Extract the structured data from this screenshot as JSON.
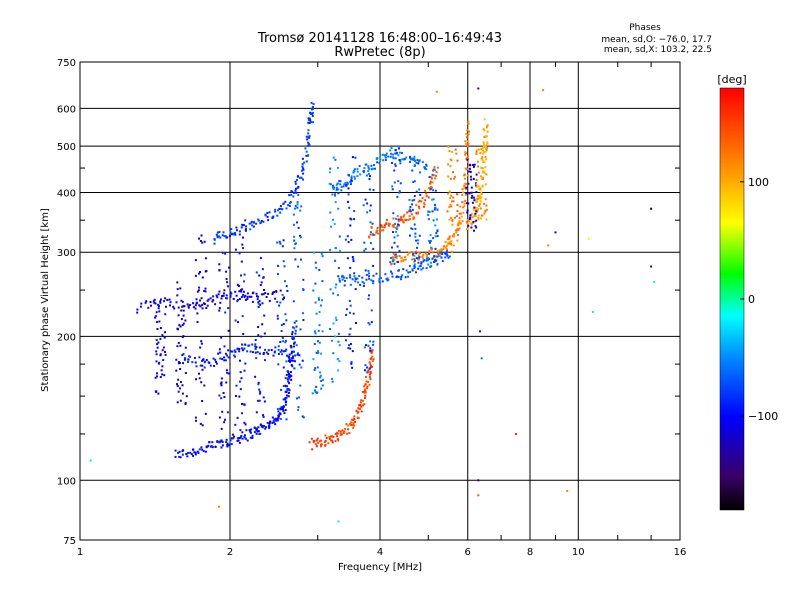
{
  "chart_data": {
    "type": "scatter",
    "title": "Tromsø 20141128 16:48:00–16:49:43",
    "subtitle": "RwPretec (8p)",
    "xlabel": "Frequency [MHz]",
    "ylabel": "Stationary phase Virtual Height [km]",
    "x_scale": "log",
    "y_scale": "log",
    "xlim": [
      1,
      16
    ],
    "ylim": [
      75,
      750
    ],
    "x_ticks": [
      1,
      2,
      4,
      6,
      8,
      10,
      16
    ],
    "x_tick_labels": [
      "1",
      "2",
      "4",
      "6",
      "8",
      "10",
      "16"
    ],
    "y_ticks": [
      75,
      100,
      200,
      300,
      400,
      500,
      600,
      750
    ],
    "y_tick_labels": [
      "75",
      "100",
      "200",
      "300",
      "400",
      "500",
      "600",
      "750"
    ],
    "grid": true,
    "phase_stats": {
      "title": "Phases",
      "line1": "mean, sd,O: −76.0, 17.7",
      "line2": "mean, sd,X: 103.2, 22.5"
    },
    "colorbar": {
      "label": "[deg]",
      "range": [
        -180,
        180
      ],
      "ticks": [
        100,
        0,
        -100
      ],
      "tick_labels": [
        "100",
        "0",
        "−100"
      ]
    },
    "traces": [
      {
        "kind": "o_low",
        "phase": -100,
        "pts": [
          [
            1.55,
            113
          ],
          [
            1.7,
            115
          ],
          [
            1.85,
            118
          ],
          [
            2.0,
            121
          ],
          [
            2.15,
            124
          ],
          [
            2.3,
            128
          ],
          [
            2.45,
            133
          ],
          [
            2.55,
            140
          ],
          [
            2.6,
            150
          ],
          [
            2.63,
            165
          ],
          [
            2.66,
            185
          ],
          [
            2.7,
            210
          ]
        ]
      },
      {
        "kind": "x_low",
        "phase": 150,
        "pts": [
          [
            2.9,
            119
          ],
          [
            3.1,
            121
          ],
          [
            3.3,
            124
          ],
          [
            3.5,
            130
          ],
          [
            3.65,
            140
          ],
          [
            3.75,
            155
          ],
          [
            3.82,
            170
          ],
          [
            3.86,
            190
          ]
        ]
      },
      {
        "kind": "o_f",
        "phase": -80,
        "pts": [
          [
            1.85,
            320
          ],
          [
            2.0,
            328
          ],
          [
            2.2,
            340
          ],
          [
            2.4,
            355
          ],
          [
            2.6,
            380
          ],
          [
            2.75,
            420
          ],
          [
            2.85,
            480
          ],
          [
            2.9,
            560
          ],
          [
            2.93,
            610
          ]
        ]
      },
      {
        "kind": "o_f2",
        "phase": -70,
        "pts": [
          [
            3.3,
            262
          ],
          [
            3.6,
            262
          ],
          [
            4.0,
            265
          ],
          [
            4.4,
            270
          ],
          [
            4.8,
            280
          ],
          [
            5.2,
            290
          ],
          [
            5.5,
            300
          ]
        ]
      },
      {
        "kind": "x_f",
        "phase": 120,
        "pts": [
          [
            4.2,
            290
          ],
          [
            4.5,
            292
          ],
          [
            4.9,
            296
          ],
          [
            5.3,
            303
          ],
          [
            5.6,
            320
          ],
          [
            5.8,
            350
          ],
          [
            5.92,
            400
          ],
          [
            5.98,
            470
          ],
          [
            6.0,
            560
          ]
        ]
      },
      {
        "kind": "x_f2",
        "phase": 100,
        "pts": [
          [
            6.0,
            340
          ],
          [
            6.2,
            360
          ],
          [
            6.35,
            400
          ],
          [
            6.45,
            450
          ],
          [
            6.5,
            500
          ],
          [
            6.52,
            560
          ]
        ]
      },
      {
        "kind": "spread",
        "phase": -110,
        "pts": [
          [
            1.3,
            230
          ],
          [
            1.5,
            235
          ],
          [
            1.7,
            230
          ],
          [
            1.9,
            240
          ],
          [
            2.1,
            245
          ],
          [
            2.3,
            240
          ],
          [
            2.6,
            245
          ]
        ]
      },
      {
        "kind": "spread2",
        "phase": -90,
        "pts": [
          [
            1.6,
            180
          ],
          [
            1.8,
            175
          ],
          [
            2.0,
            185
          ],
          [
            2.2,
            190
          ],
          [
            2.5,
            185
          ],
          [
            2.8,
            180
          ]
        ]
      },
      {
        "kind": "upper",
        "phase": -60,
        "pts": [
          [
            3.2,
            400
          ],
          [
            3.4,
            420
          ],
          [
            3.6,
            440
          ],
          [
            3.9,
            460
          ],
          [
            4.2,
            480
          ],
          [
            4.6,
            470
          ],
          [
            5.0,
            450
          ]
        ]
      },
      {
        "kind": "upper_x",
        "phase": 140,
        "pts": [
          [
            3.8,
            330
          ],
          [
            4.1,
            340
          ],
          [
            4.4,
            350
          ],
          [
            4.7,
            360
          ],
          [
            5.0,
            400
          ],
          [
            5.2,
            450
          ]
        ]
      }
    ],
    "isolated_points": [
      {
        "x": 9.0,
        "y": 330,
        "phase": -120
      },
      {
        "x": 8.7,
        "y": 310,
        "phase": 120
      },
      {
        "x": 6.35,
        "y": 205,
        "phase": -90
      },
      {
        "x": 6.4,
        "y": 180,
        "phase": -60
      },
      {
        "x": 6.3,
        "y": 100,
        "phase": -110
      },
      {
        "x": 7.5,
        "y": 125,
        "phase": 160
      },
      {
        "x": 9.5,
        "y": 95,
        "phase": 120
      },
      {
        "x": 10.5,
        "y": 320,
        "phase": 60
      },
      {
        "x": 14.0,
        "y": 370,
        "phase": -170
      },
      {
        "x": 14.0,
        "y": 280,
        "phase": -130
      },
      {
        "x": 14.2,
        "y": 260,
        "phase": -20
      },
      {
        "x": 10.7,
        "y": 225,
        "phase": 0
      },
      {
        "x": 6.3,
        "y": 660,
        "phase": -150
      },
      {
        "x": 8.5,
        "y": 655,
        "phase": 120
      },
      {
        "x": 5.2,
        "y": 650,
        "phase": 120
      },
      {
        "x": 1.05,
        "y": 110,
        "phase": -20
      },
      {
        "x": 1.9,
        "y": 88,
        "phase": 120
      },
      {
        "x": 3.3,
        "y": 82,
        "phase": -20
      },
      {
        "x": 6.3,
        "y": 93,
        "phase": 140
      }
    ]
  }
}
